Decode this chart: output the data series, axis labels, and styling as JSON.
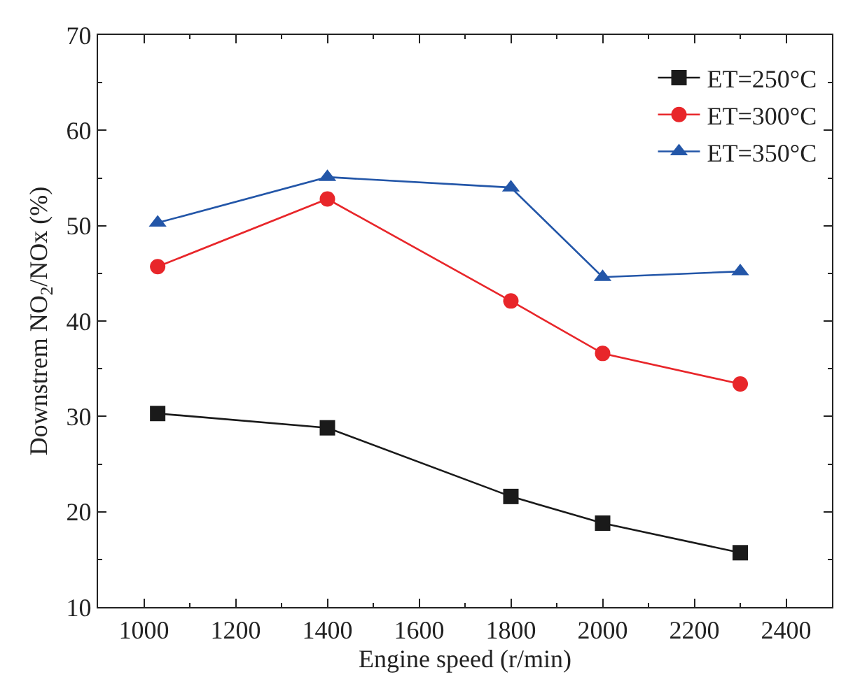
{
  "chart_data": {
    "type": "line",
    "xlabel": "Engine speed (r/min)",
    "ylabel": "Downstrem NO$_{2}$/NOx (%)",
    "x": [
      1030,
      1400,
      1800,
      2000,
      2300
    ],
    "series": [
      {
        "name": "ET=250°C",
        "color": "#1a1a1a",
        "marker": "square",
        "values": [
          30.3,
          28.8,
          21.6,
          18.8,
          15.7
        ]
      },
      {
        "name": "ET=300°C",
        "color": "#e8262a",
        "marker": "circle",
        "values": [
          45.7,
          52.8,
          42.1,
          36.6,
          33.4
        ]
      },
      {
        "name": "ET=350°C",
        "color": "#2356a8",
        "marker": "triangle",
        "values": [
          50.3,
          55.1,
          54.0,
          44.6,
          45.2
        ]
      }
    ],
    "xlim": [
      900,
      2500
    ],
    "xticks": [
      1000,
      1200,
      1400,
      1600,
      1800,
      2000,
      2200,
      2400
    ],
    "ylim": [
      10,
      70
    ],
    "yticks": [
      10,
      20,
      30,
      40,
      50,
      60,
      70
    ],
    "grid": false,
    "legend": "top right",
    "line_style": "solid"
  }
}
